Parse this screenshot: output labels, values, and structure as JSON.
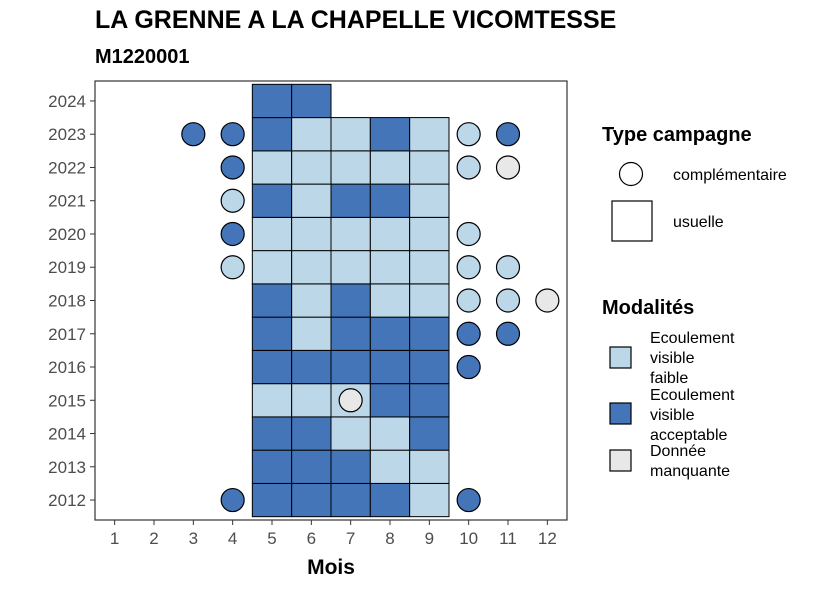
{
  "chart_data": {
    "type": "heatmap",
    "title": "LA GRENNE A LA CHAPELLE VICOMTESSE",
    "subtitle": "M1220001",
    "xlabel": "Mois",
    "ylabel": "",
    "x_ticks": [
      1,
      2,
      3,
      4,
      5,
      6,
      7,
      8,
      9,
      10,
      11,
      12
    ],
    "y_ticks": [
      2012,
      2013,
      2014,
      2015,
      2016,
      2017,
      2018,
      2019,
      2020,
      2021,
      2022,
      2023,
      2024
    ],
    "xlim": [
      0.5,
      12.5
    ],
    "ylim": [
      2011.4,
      2024.6
    ],
    "grid": false,
    "legend_position": "right",
    "legend_shape": {
      "title": "Type campagne",
      "entries": [
        {
          "key": "complementaire",
          "label": "complémentaire",
          "shape": "circle"
        },
        {
          "key": "usuelle",
          "label": "usuelle",
          "shape": "square"
        }
      ]
    },
    "legend_fill": {
      "title": "Modalités",
      "entries": [
        {
          "key": "faible",
          "label_lines": [
            "Ecoulement",
            "visible",
            "faible"
          ],
          "color": "#bcd7e8"
        },
        {
          "key": "acceptable",
          "label_lines": [
            "Ecoulement",
            "visible",
            "acceptable"
          ],
          "color": "#4575b9"
        },
        {
          "key": "manquante",
          "label_lines": [
            "Donnée",
            "manquante"
          ],
          "color": "#e8e8e8"
        }
      ]
    },
    "usuelle": [
      {
        "year": 2012,
        "values": {
          "5": "acceptable",
          "6": "acceptable",
          "7": "acceptable",
          "8": "acceptable",
          "9": "faible"
        }
      },
      {
        "year": 2013,
        "values": {
          "5": "acceptable",
          "6": "acceptable",
          "7": "acceptable",
          "8": "faible",
          "9": "faible"
        }
      },
      {
        "year": 2014,
        "values": {
          "5": "acceptable",
          "6": "acceptable",
          "7": "faible",
          "8": "faible",
          "9": "acceptable"
        }
      },
      {
        "year": 2015,
        "values": {
          "5": "faible",
          "6": "faible",
          "7": "faible",
          "8": "acceptable",
          "9": "acceptable"
        }
      },
      {
        "year": 2016,
        "values": {
          "5": "acceptable",
          "6": "acceptable",
          "7": "acceptable",
          "8": "acceptable",
          "9": "acceptable"
        }
      },
      {
        "year": 2017,
        "values": {
          "5": "acceptable",
          "6": "faible",
          "7": "acceptable",
          "8": "acceptable",
          "9": "acceptable"
        }
      },
      {
        "year": 2018,
        "values": {
          "5": "acceptable",
          "6": "faible",
          "7": "acceptable",
          "8": "faible",
          "9": "faible"
        }
      },
      {
        "year": 2019,
        "values": {
          "5": "faible",
          "6": "faible",
          "7": "faible",
          "8": "faible",
          "9": "faible"
        }
      },
      {
        "year": 2020,
        "values": {
          "5": "faible",
          "6": "faible",
          "7": "faible",
          "8": "faible",
          "9": "faible"
        }
      },
      {
        "year": 2021,
        "values": {
          "5": "acceptable",
          "6": "faible",
          "7": "acceptable",
          "8": "acceptable",
          "9": "faible"
        }
      },
      {
        "year": 2022,
        "values": {
          "5": "faible",
          "6": "faible",
          "7": "faible",
          "8": "faible",
          "9": "faible"
        }
      },
      {
        "year": 2023,
        "values": {
          "5": "acceptable",
          "6": "faible",
          "7": "faible",
          "8": "acceptable",
          "9": "faible"
        }
      },
      {
        "year": 2024,
        "values": {
          "5": "acceptable",
          "6": "acceptable"
        }
      }
    ],
    "complementaire": [
      {
        "year": 2012,
        "month": 4,
        "value": "acceptable"
      },
      {
        "year": 2012,
        "month": 10,
        "value": "acceptable"
      },
      {
        "year": 2015,
        "month": 7,
        "value": "manquante"
      },
      {
        "year": 2016,
        "month": 10,
        "value": "acceptable"
      },
      {
        "year": 2017,
        "month": 10,
        "value": "acceptable"
      },
      {
        "year": 2017,
        "month": 11,
        "value": "acceptable"
      },
      {
        "year": 2018,
        "month": 10,
        "value": "faible"
      },
      {
        "year": 2018,
        "month": 11,
        "value": "faible"
      },
      {
        "year": 2018,
        "month": 12,
        "value": "manquante"
      },
      {
        "year": 2019,
        "month": 4,
        "value": "faible"
      },
      {
        "year": 2019,
        "month": 10,
        "value": "faible"
      },
      {
        "year": 2019,
        "month": 11,
        "value": "faible"
      },
      {
        "year": 2020,
        "month": 4,
        "value": "acceptable"
      },
      {
        "year": 2020,
        "month": 10,
        "value": "faible"
      },
      {
        "year": 2021,
        "month": 4,
        "value": "faible"
      },
      {
        "year": 2022,
        "month": 4,
        "value": "acceptable"
      },
      {
        "year": 2022,
        "month": 10,
        "value": "faible"
      },
      {
        "year": 2022,
        "month": 11,
        "value": "manquante"
      },
      {
        "year": 2023,
        "month": 3,
        "value": "acceptable"
      },
      {
        "year": 2023,
        "month": 4,
        "value": "acceptable"
      },
      {
        "year": 2023,
        "month": 10,
        "value": "faible"
      },
      {
        "year": 2023,
        "month": 11,
        "value": "acceptable"
      }
    ]
  }
}
